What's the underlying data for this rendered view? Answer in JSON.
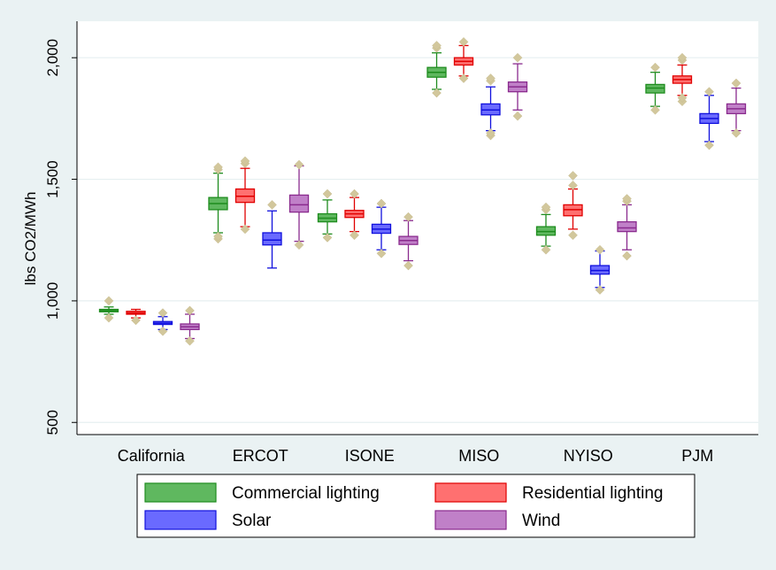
{
  "chart_data": {
    "type": "box",
    "title": "",
    "xlabel": "",
    "ylabel": "lbs CO2/MWh",
    "ylim": [
      450,
      2150
    ],
    "yticks": [
      500,
      1000,
      1500,
      2000
    ],
    "ytick_labels": [
      "500",
      "1,000",
      "1,500",
      "2,000"
    ],
    "grid": true,
    "legend_position": "bottom",
    "categories": [
      "California",
      "ERCOT",
      "ISONE",
      "MISO",
      "NYISO",
      "PJM"
    ],
    "series": [
      {
        "name": "Commercial lighting",
        "color": "#5fb85f",
        "stroke": "#1e8c1e",
        "boxes": [
          {
            "q1": 955,
            "median": 960,
            "q3": 965,
            "whisker_low": 945,
            "whisker_high": 975,
            "outliers": [
              930,
              1000
            ]
          },
          {
            "q1": 1375,
            "median": 1400,
            "q3": 1425,
            "whisker_low": 1280,
            "whisker_high": 1525,
            "outliers": [
              1255,
              1265,
              1540,
              1550
            ]
          },
          {
            "q1": 1325,
            "median": 1340,
            "q3": 1358,
            "whisker_low": 1275,
            "whisker_high": 1415,
            "outliers": [
              1260,
              1440
            ]
          },
          {
            "q1": 1920,
            "median": 1940,
            "q3": 1960,
            "whisker_low": 1870,
            "whisker_high": 2020,
            "outliers": [
              1855,
              2040,
              2050
            ]
          },
          {
            "q1": 1270,
            "median": 1285,
            "q3": 1305,
            "whisker_low": 1225,
            "whisker_high": 1355,
            "outliers": [
              1210,
              1375,
              1385
            ]
          },
          {
            "q1": 1855,
            "median": 1875,
            "q3": 1890,
            "whisker_low": 1800,
            "whisker_high": 1940,
            "outliers": [
              1785,
              1960
            ]
          }
        ]
      },
      {
        "name": "Residential lighting",
        "color": "#ff7070",
        "stroke": "#e00000",
        "boxes": [
          {
            "q1": 945,
            "median": 950,
            "q3": 957,
            "whisker_low": 930,
            "whisker_high": 965,
            "outliers": [
              920
            ]
          },
          {
            "q1": 1405,
            "median": 1430,
            "q3": 1460,
            "whisker_low": 1305,
            "whisker_high": 1545,
            "outliers": [
              1295,
              1565,
              1575
            ]
          },
          {
            "q1": 1343,
            "median": 1358,
            "q3": 1372,
            "whisker_low": 1285,
            "whisker_high": 1425,
            "outliers": [
              1270,
              1440
            ]
          },
          {
            "q1": 1970,
            "median": 1985,
            "q3": 2000,
            "whisker_low": 1925,
            "whisker_high": 2050,
            "outliers": [
              1915,
              2065
            ]
          },
          {
            "q1": 1350,
            "median": 1375,
            "q3": 1395,
            "whisker_low": 1295,
            "whisker_high": 1460,
            "outliers": [
              1270,
              1475,
              1515
            ]
          },
          {
            "q1": 1895,
            "median": 1910,
            "q3": 1925,
            "whisker_low": 1845,
            "whisker_high": 1970,
            "outliers": [
              1820,
              1835,
              1990,
              2000
            ]
          }
        ]
      },
      {
        "name": "Solar",
        "color": "#6a6aff",
        "stroke": "#1010dd",
        "boxes": [
          {
            "q1": 903,
            "median": 908,
            "q3": 915,
            "whisker_low": 882,
            "whisker_high": 935,
            "outliers": [
              875,
              950
            ]
          },
          {
            "q1": 1230,
            "median": 1250,
            "q3": 1280,
            "whisker_low": 1135,
            "whisker_high": 1370,
            "outliers": [
              1395
            ]
          },
          {
            "q1": 1278,
            "median": 1295,
            "q3": 1315,
            "whisker_low": 1210,
            "whisker_high": 1385,
            "outliers": [
              1195,
              1400
            ]
          },
          {
            "q1": 1765,
            "median": 1785,
            "q3": 1810,
            "whisker_low": 1700,
            "whisker_high": 1880,
            "outliers": [
              1680,
              1690,
              1905,
              1915
            ]
          },
          {
            "q1": 1110,
            "median": 1125,
            "q3": 1145,
            "whisker_low": 1055,
            "whisker_high": 1205,
            "outliers": [
              1045,
              1210
            ]
          },
          {
            "q1": 1730,
            "median": 1750,
            "q3": 1770,
            "whisker_low": 1655,
            "whisker_high": 1845,
            "outliers": [
              1640,
              1860
            ]
          }
        ]
      },
      {
        "name": "Wind",
        "color": "#c080c8",
        "stroke": "#8a2b8e",
        "boxes": [
          {
            "q1": 882,
            "median": 893,
            "q3": 905,
            "whisker_low": 845,
            "whisker_high": 945,
            "outliers": [
              835,
              960
            ]
          },
          {
            "q1": 1365,
            "median": 1395,
            "q3": 1435,
            "whisker_low": 1245,
            "whisker_high": 1555,
            "outliers": [
              1230,
              1560
            ]
          },
          {
            "q1": 1232,
            "median": 1248,
            "q3": 1265,
            "whisker_low": 1165,
            "whisker_high": 1330,
            "outliers": [
              1145,
              1345
            ]
          },
          {
            "q1": 1860,
            "median": 1880,
            "q3": 1900,
            "whisker_low": 1785,
            "whisker_high": 1975,
            "outliers": [
              1760,
              2000
            ]
          },
          {
            "q1": 1285,
            "median": 1300,
            "q3": 1325,
            "whisker_low": 1210,
            "whisker_high": 1395,
            "outliers": [
              1185,
              1410,
              1420
            ]
          },
          {
            "q1": 1770,
            "median": 1790,
            "q3": 1810,
            "whisker_low": 1700,
            "whisker_high": 1875,
            "outliers": [
              1690,
              1895
            ]
          }
        ]
      }
    ],
    "outlier_color": "#d2c79c"
  },
  "legend": {
    "items": [
      {
        "label": "Commercial lighting",
        "color": "#5fb85f",
        "stroke": "#1e8c1e"
      },
      {
        "label": "Residential lighting",
        "color": "#ff7070",
        "stroke": "#e00000"
      },
      {
        "label": "Solar",
        "color": "#6a6aff",
        "stroke": "#1010dd"
      },
      {
        "label": "Wind",
        "color": "#c080c8",
        "stroke": "#8a2b8e"
      }
    ]
  }
}
